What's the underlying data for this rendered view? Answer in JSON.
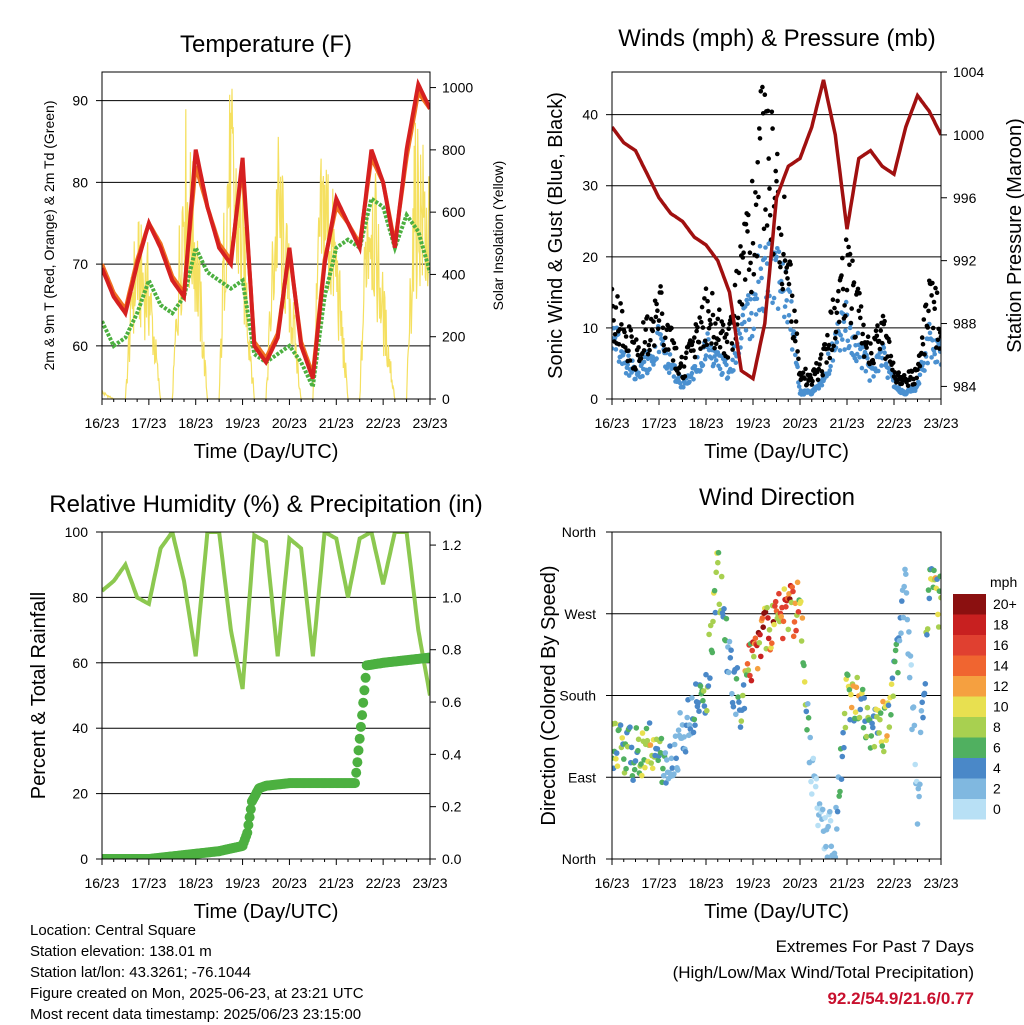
{
  "colors": {
    "temp_2m": "#d62020",
    "temp_9m": "#f07020",
    "dewpoint": "#4cb040",
    "solar": "#f5e060",
    "wind": "#4a90d0",
    "gust": "#000000",
    "pressure": "#a01010",
    "rh": "#8cc850",
    "precip": "#4cb040",
    "extremes": "#c8102e"
  },
  "time_ticks": [
    "16/23",
    "17/23",
    "18/23",
    "19/23",
    "20/23",
    "21/23",
    "22/23",
    "23/23"
  ],
  "chart_data": [
    {
      "id": "temperature",
      "type": "line",
      "title": "Temperature (F)",
      "xlabel": "Time (Day/UTC)",
      "ylabel": "2m & 9m T (Red, Orange) & 2m Td (Green)",
      "y2label": "Solar Insolation (Yellow)",
      "ylim": [
        53.5,
        93.5
      ],
      "y2lim": [
        0,
        1050
      ],
      "yticks": [
        "60",
        "70",
        "80",
        "90"
      ],
      "y2ticks": [
        "0",
        "200",
        "400",
        "600",
        "800",
        "1000"
      ],
      "grid": true,
      "series": [
        {
          "name": "2m T",
          "x": [
            0,
            0.25,
            0.5,
            0.75,
            1.0,
            1.25,
            1.5,
            1.75,
            2.0,
            2.25,
            2.5,
            2.75,
            3.0,
            3.25,
            3.5,
            3.75,
            4.0,
            4.25,
            4.5,
            4.75,
            5.0,
            5.25,
            5.5,
            5.75,
            6.0,
            6.25,
            6.5,
            6.75,
            7.0
          ],
          "values": [
            69.5,
            66,
            64,
            70,
            75,
            72,
            68,
            66,
            84,
            77,
            72,
            70,
            83,
            60,
            58,
            61,
            72,
            60,
            56,
            70,
            78,
            75,
            72,
            84,
            80,
            72,
            84,
            92,
            89
          ]
        },
        {
          "name": "9m T",
          "x": [
            0,
            0.25,
            0.5,
            0.75,
            1.0,
            1.25,
            1.5,
            1.75,
            2.0,
            2.25,
            2.5,
            2.75,
            3.0,
            3.25,
            3.5,
            3.75,
            4.0,
            4.25,
            4.5,
            4.75,
            5.0,
            5.25,
            5.5,
            5.75,
            6.0,
            6.25,
            6.5,
            6.75,
            7.0
          ],
          "values": [
            70,
            66.5,
            64.5,
            70.5,
            75,
            72.5,
            68.5,
            66.5,
            82,
            77,
            72.5,
            70.5,
            82,
            60.5,
            58.5,
            61.5,
            71.5,
            60.5,
            56.5,
            70.5,
            77,
            75,
            72.5,
            83,
            80,
            72.5,
            83,
            91,
            89
          ]
        },
        {
          "name": "2m Td",
          "x": [
            0,
            0.25,
            0.5,
            0.75,
            1.0,
            1.25,
            1.5,
            1.75,
            2.0,
            2.25,
            2.5,
            2.75,
            3.0,
            3.25,
            3.5,
            3.75,
            4.0,
            4.25,
            4.5,
            4.75,
            5.0,
            5.25,
            5.5,
            5.75,
            6.0,
            6.25,
            6.5,
            6.75,
            7.0
          ],
          "values": [
            63,
            60,
            61,
            64,
            68,
            65,
            64,
            66,
            72,
            69,
            68,
            67,
            68,
            59,
            58,
            59,
            60,
            58,
            55,
            66,
            72,
            73,
            72,
            78,
            77,
            72,
            76,
            74,
            69
          ]
        },
        {
          "name": "Solar",
          "axis": "y2",
          "x": [
            0,
            0.25,
            0.5,
            0.65,
            0.75,
            1.0,
            1.25,
            1.5,
            1.65,
            1.75,
            2.0,
            2.25,
            2.5,
            2.65,
            2.75,
            3.0,
            3.25,
            3.5,
            3.65,
            3.75,
            4.0,
            4.25,
            4.5,
            4.65,
            4.75,
            5.0,
            5.25,
            5.5,
            5.65,
            5.75,
            6.0,
            6.25,
            6.5,
            6.65,
            6.75,
            7.0
          ],
          "values": [
            30,
            0,
            0,
            500,
            600,
            500,
            0,
            0,
            600,
            1000,
            700,
            0,
            0,
            950,
            1040,
            700,
            0,
            0,
            600,
            900,
            500,
            0,
            0,
            750,
            900,
            600,
            0,
            0,
            800,
            900,
            400,
            0,
            0,
            850,
            950,
            700
          ]
        }
      ]
    },
    {
      "id": "winds",
      "type": "scatter",
      "title": "Winds (mph) & Pressure (mb)",
      "xlabel": "Time (Day/UTC)",
      "ylabel": "Sonic Wind & Gust (Blue, Black)",
      "y2label": "Station Pressure (Maroon)",
      "ylim": [
        0,
        46
      ],
      "y2lim": [
        983.2,
        1004
      ],
      "yticks": [
        "0",
        "10",
        "20",
        "30",
        "40"
      ],
      "y2ticks": [
        "984",
        "988",
        "992",
        "996",
        "1000",
        "1004"
      ],
      "grid": true,
      "series": [
        {
          "name": "Wind",
          "x": [
            0,
            0.25,
            0.5,
            0.75,
            1.0,
            1.25,
            1.5,
            1.75,
            2.0,
            2.25,
            2.5,
            2.75,
            3.0,
            3.25,
            3.5,
            3.75,
            4.0,
            4.25,
            4.5,
            4.75,
            5.0,
            5.25,
            5.5,
            5.75,
            6.0,
            6.25,
            6.5,
            6.75,
            7.0
          ],
          "values": [
            10,
            6,
            4,
            6,
            9,
            5,
            2,
            4,
            8,
            6,
            4,
            10,
            15,
            20,
            18,
            16,
            1,
            1,
            3,
            9,
            12,
            8,
            4,
            7,
            2,
            1,
            2,
            9,
            7
          ]
        },
        {
          "name": "Gust",
          "x": [
            0,
            0.25,
            0.5,
            0.75,
            1.0,
            1.25,
            1.5,
            1.75,
            2.0,
            2.25,
            2.5,
            2.75,
            3.0,
            3.25,
            3.5,
            3.75,
            4.0,
            4.25,
            4.5,
            4.75,
            5.0,
            5.25,
            5.5,
            5.75,
            6.0,
            6.25,
            6.5,
            6.75,
            7.0
          ],
          "values": [
            15,
            10,
            7,
            10,
            14,
            9,
            5,
            8,
            14,
            12,
            9,
            20,
            28,
            43,
            30,
            22,
            4,
            3,
            6,
            14,
            20,
            13,
            7,
            11,
            4,
            3,
            4,
            16,
            11
          ]
        },
        {
          "name": "Pressure",
          "axis": "y2",
          "x": [
            0,
            0.25,
            0.5,
            0.75,
            1.0,
            1.25,
            1.5,
            1.75,
            2.0,
            2.25,
            2.5,
            2.75,
            3.0,
            3.25,
            3.5,
            3.75,
            4.0,
            4.25,
            4.5,
            4.75,
            5.0,
            5.25,
            5.5,
            5.75,
            6.0,
            6.25,
            6.5,
            6.75,
            7.0
          ],
          "values": [
            1000.5,
            999.5,
            999,
            997.5,
            996,
            995,
            994.5,
            993.5,
            993,
            992,
            990,
            985,
            984.5,
            988,
            996,
            998,
            998.5,
            1000.5,
            1003.5,
            1000,
            994,
            998.5,
            999,
            998,
            997.5,
            1000.5,
            1002.5,
            1001.5,
            1000
          ]
        }
      ]
    },
    {
      "id": "humidity",
      "type": "line",
      "title": "Relative Humidity (%) & Precipitation (in)",
      "xlabel": "Time (Day/UTC)",
      "ylabel": "Percent & Total Rainfall",
      "ylim": [
        0,
        100
      ],
      "y2lim": [
        0,
        1.25
      ],
      "yticks": [
        "0",
        "20",
        "40",
        "60",
        "80",
        "100"
      ],
      "y2ticks": [
        "0.0",
        "0.2",
        "0.4",
        "0.6",
        "0.8",
        "1.0",
        "1.2"
      ],
      "grid": true,
      "series": [
        {
          "name": "RH",
          "x": [
            0,
            0.25,
            0.5,
            0.75,
            1.0,
            1.25,
            1.5,
            1.75,
            2.0,
            2.25,
            2.5,
            2.75,
            3.0,
            3.25,
            3.5,
            3.75,
            4.0,
            4.25,
            4.5,
            4.75,
            5.0,
            5.25,
            5.5,
            5.75,
            6.0,
            6.25,
            6.5,
            6.75,
            7.0
          ],
          "values": [
            82,
            85,
            90,
            80,
            78,
            95,
            100,
            85,
            62,
            100,
            100,
            70,
            52,
            99,
            97,
            62,
            98,
            95,
            62,
            100,
            98,
            80,
            98,
            100,
            84,
            100,
            100,
            70,
            50
          ]
        },
        {
          "name": "Precip",
          "axis": "y2",
          "x": [
            0,
            1.0,
            1.5,
            2.0,
            2.5,
            3.0,
            3.1,
            3.2,
            3.35,
            3.5,
            4.0,
            4.5,
            5.0,
            5.4,
            5.45,
            5.55,
            5.65,
            6.0,
            6.5,
            7.0
          ],
          "values": [
            0.0,
            0.0,
            0.01,
            0.02,
            0.03,
            0.05,
            0.1,
            0.22,
            0.27,
            0.28,
            0.29,
            0.29,
            0.29,
            0.29,
            0.37,
            0.55,
            0.74,
            0.75,
            0.76,
            0.77
          ]
        }
      ]
    },
    {
      "id": "direction",
      "type": "scatter",
      "title": "Wind Direction",
      "xlabel": "Time (Day/UTC)",
      "ylabel": "Direction (Colored By Speed)",
      "ylim": [
        0,
        360
      ],
      "ycategories": [
        "North",
        "East",
        "South",
        "West",
        "North"
      ],
      "grid": true,
      "legend": {
        "title": "mph",
        "labels": [
          "20+",
          "18",
          "16",
          "14",
          "12",
          "10",
          "8",
          "6",
          "4",
          "2",
          "0"
        ],
        "colors": [
          "#8b1010",
          "#c82020",
          "#e04030",
          "#f06530",
          "#f5a040",
          "#e8e050",
          "#a8d050",
          "#50b060",
          "#4a88c8",
          "#80b8e0",
          "#b8e0f5"
        ]
      },
      "series": [
        {
          "name": "Direction",
          "x": [
            0,
            0.25,
            0.5,
            0.75,
            1.0,
            1.25,
            1.5,
            1.75,
            2.0,
            2.25,
            2.5,
            2.75,
            3.0,
            3.25,
            3.5,
            3.75,
            4.0,
            4.25,
            4.5,
            4.75,
            5.0,
            5.25,
            5.5,
            5.75,
            6.0,
            6.25,
            6.5,
            6.75,
            7.0
          ],
          "values": [
            130,
            120,
            115,
            125,
            110,
            100,
            140,
            160,
            180,
            320,
            210,
            170,
            230,
            250,
            270,
            275,
            275,
            90,
            30,
            20,
            180,
            170,
            150,
            140,
            190,
            300,
            60,
            300,
            280
          ],
          "speeds": [
            8,
            6,
            4,
            9,
            6,
            3,
            2,
            4,
            5,
            7,
            3,
            5,
            14,
            16,
            12,
            13,
            11,
            1,
            1,
            2,
            8,
            9,
            4,
            10,
            6,
            2,
            1,
            7,
            9
          ]
        }
      ]
    }
  ],
  "footer": {
    "location": "Location: Central Square",
    "elevation": "Station elevation: 138.01 m",
    "latlon": "Station lat/lon: 43.3261; -76.1044",
    "created": "Figure created on Mon, 2025-06-23, at 23:21 UTC",
    "recent": "Most recent data timestamp: 2025/06/23 23:15:00"
  },
  "extremes": {
    "title": "Extremes For Past 7 Days",
    "subtitle": "(High/Low/Max Wind/Total Precipitation)",
    "values": "92.2/54.9/21.6/0.77"
  }
}
